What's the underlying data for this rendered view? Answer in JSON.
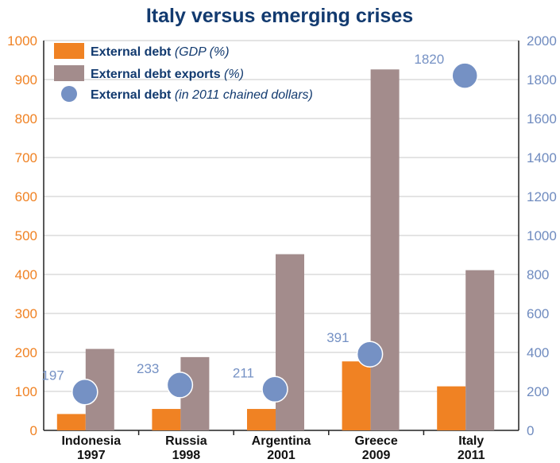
{
  "chart_data": {
    "type": "bar",
    "title": "Italy versus emerging crises",
    "categories": [
      {
        "name": "Indonesia",
        "year": "1997"
      },
      {
        "name": "Russia",
        "year": "1998"
      },
      {
        "name": "Argentina",
        "year": "2001"
      },
      {
        "name": "Greece",
        "year": "2009"
      },
      {
        "name": "Italy",
        "year": "2011"
      }
    ],
    "series": [
      {
        "key": "gdp",
        "name": "External debt",
        "qualifier": "(GDP (%)",
        "axis": "left",
        "values": [
          42,
          55,
          55,
          177,
          113
        ]
      },
      {
        "key": "exports",
        "name": "External debt exports",
        "qualifier": "(%)",
        "axis": "left",
        "values": [
          209,
          188,
          452,
          926,
          411
        ]
      },
      {
        "key": "dollars",
        "name": "External debt",
        "qualifier": "(in 2011 chained dollars)",
        "axis": "right",
        "values": [
          197,
          233,
          211,
          391,
          1820
        ]
      }
    ],
    "dot_labels": [
      "197",
      "233",
      "211",
      "391",
      "1820"
    ],
    "left_axis": {
      "ylim": [
        0,
        1000
      ],
      "ticks": [
        "0",
        "100",
        "200",
        "300",
        "400",
        "500",
        "600",
        "700",
        "800",
        "900",
        "1000"
      ]
    },
    "right_axis": {
      "ylim": [
        0,
        2000
      ],
      "ticks": [
        "0",
        "200",
        "400",
        "600",
        "800",
        "1000",
        "1200",
        "1400",
        "1600",
        "1800",
        "2000"
      ]
    },
    "grid": "horizontal",
    "legend_position": "top-left",
    "colors": {
      "title": "#123a6f",
      "gdp": "#f08223",
      "exports": "#a38c8c",
      "dollars": "#7591c4",
      "left_axis": "#f08223",
      "right_axis": "#6f8bbf",
      "grid": "#c9c9c9",
      "legend_text": "#123a6f",
      "category_text": "#111111"
    }
  }
}
